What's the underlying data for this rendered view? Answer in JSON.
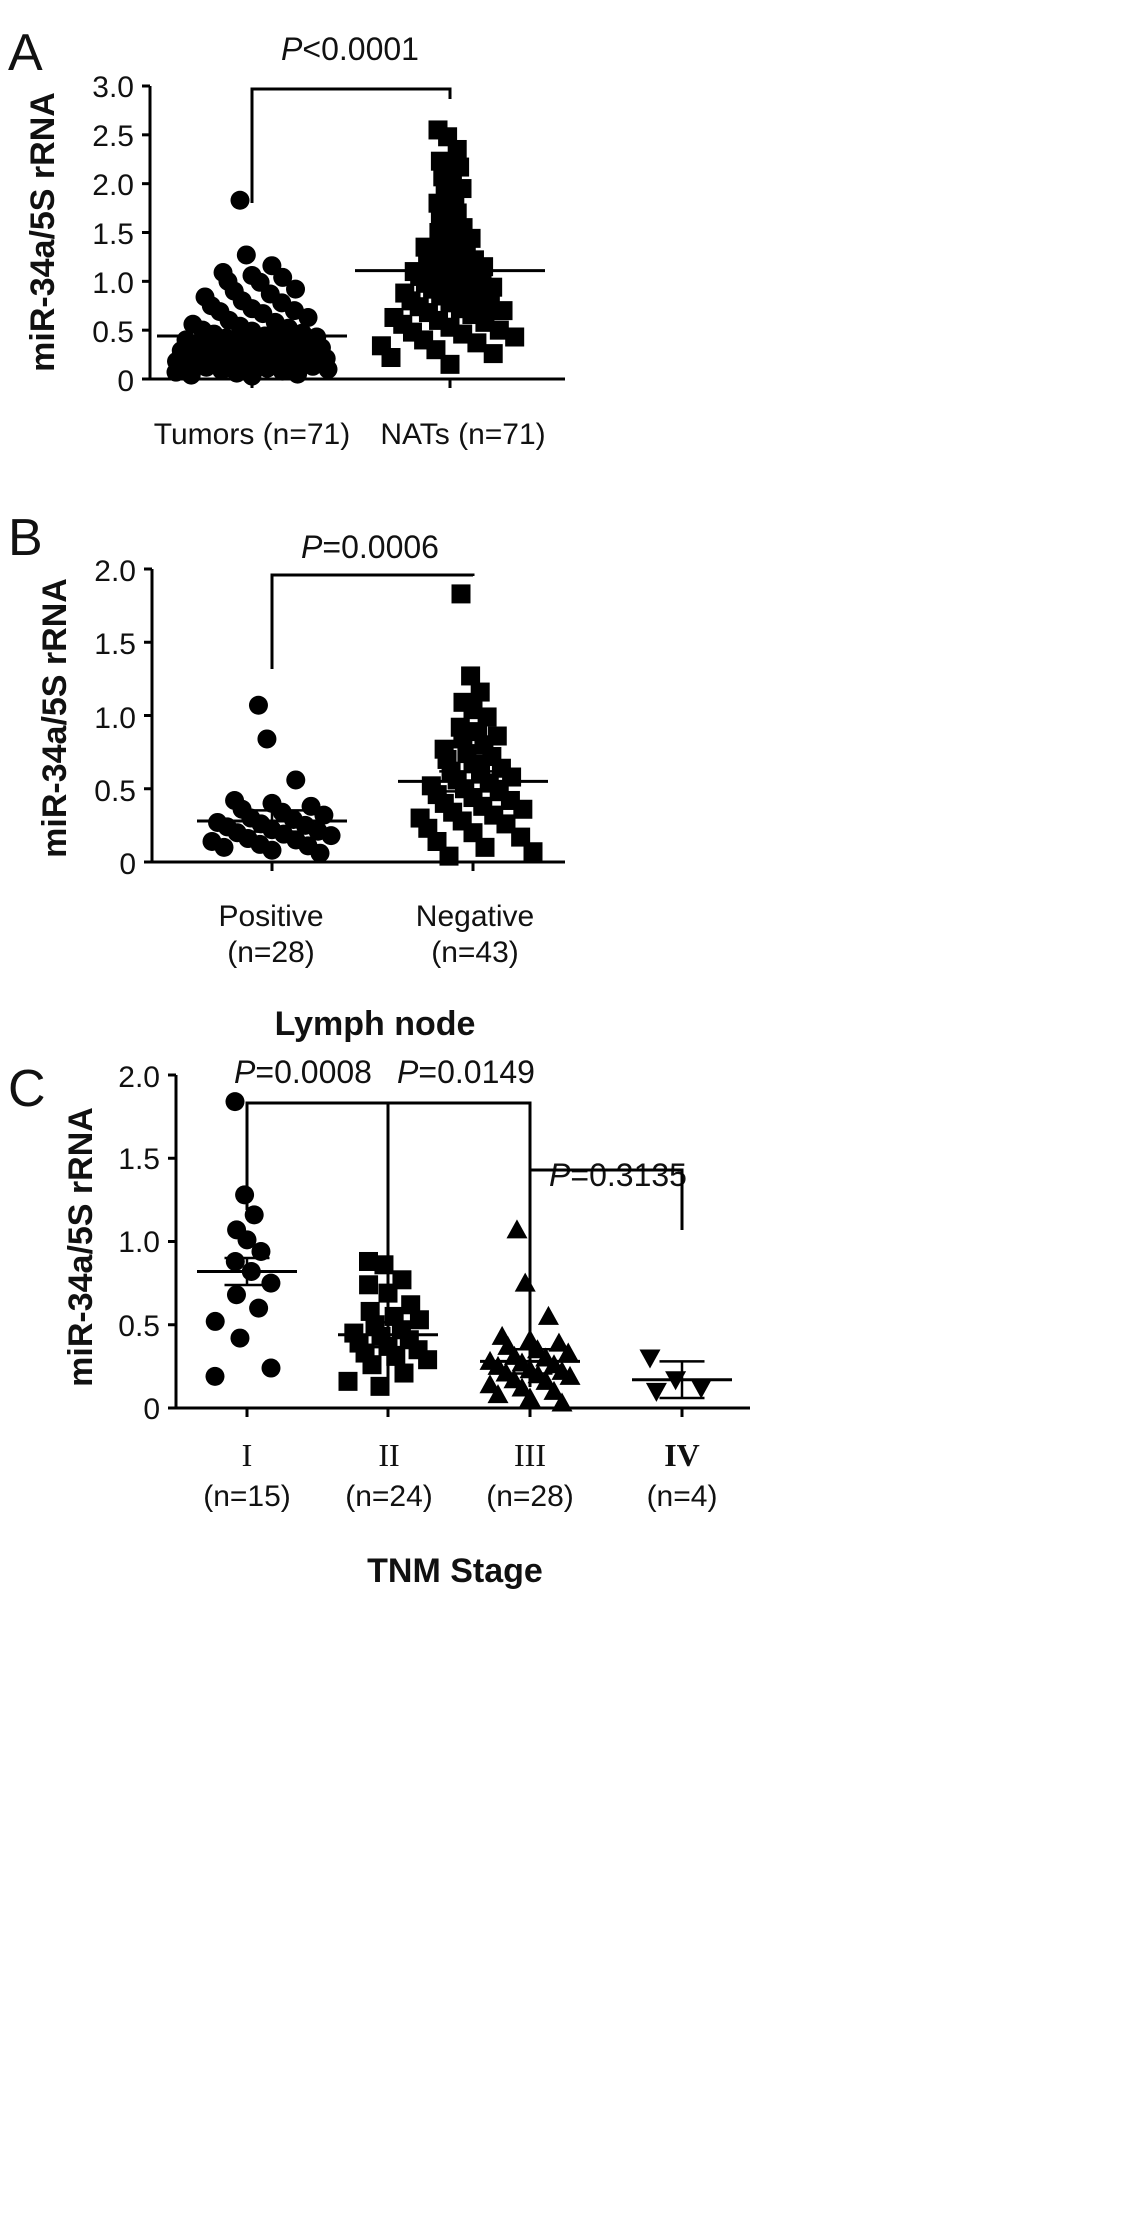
{
  "figure": {
    "panels": [
      {
        "letter": "A",
        "ylabel": "miR-34a/5S rRNA",
        "yticks": [
          "0",
          "0.5",
          "1.0",
          "1.5",
          "2.0",
          "2.5",
          "3.0"
        ],
        "groups": [
          {
            "label": "Tumors (n=71)",
            "lines": [
              "Tumors (n=71)"
            ],
            "marker": "circle"
          },
          {
            "label": "NATs (n=71)",
            "lines": [
              "NATs (n=71)"
            ],
            "marker": "square"
          }
        ],
        "xlabel": "",
        "comparisons": [
          {
            "prefix": "P",
            "text": "<0.0001"
          }
        ]
      },
      {
        "letter": "B",
        "ylabel": "miR-34a/5S rRNA",
        "yticks": [
          "0",
          "0.5",
          "1.0",
          "1.5",
          "2.0"
        ],
        "groups": [
          {
            "label": "Positive (n=28)",
            "lines": [
              "Positive",
              "(n=28)"
            ],
            "marker": "circle"
          },
          {
            "label": "Negative (n=43)",
            "lines": [
              "Negative",
              "(n=43)"
            ],
            "marker": "square"
          }
        ],
        "xlabel": "Lymph node",
        "comparisons": [
          {
            "prefix": "P",
            "text": "=0.0006"
          }
        ]
      },
      {
        "letter": "C",
        "ylabel": "miR-34a/5S rRNA",
        "yticks": [
          "0",
          "0.5",
          "1.0",
          "1.5",
          "2.0"
        ],
        "groups": [
          {
            "label": "I (n=15)",
            "lines": [
              "I",
              "(n=15)"
            ],
            "marker": "circle"
          },
          {
            "label": "II (n=24)",
            "lines": [
              "II",
              "(n=24)"
            ],
            "marker": "square"
          },
          {
            "label": "III (n=28)",
            "lines": [
              "III",
              "(n=28)"
            ],
            "marker": "triangle-up"
          },
          {
            "label": "IV (n=4)",
            "lines": [
              "IV",
              "(n=4)"
            ],
            "marker": "triangle-down"
          }
        ],
        "xlabel": "TNM Stage",
        "comparisons": [
          {
            "prefix": "P",
            "text": "=0.0008"
          },
          {
            "prefix": "P",
            "text": "=0.0149"
          },
          {
            "prefix": "P",
            "text": "=0.3135"
          }
        ]
      }
    ]
  },
  "chart_data": [
    {
      "panel": "A",
      "type": "scatter",
      "title": "",
      "xlabel": "",
      "ylabel": "miR-34a/5S rRNA",
      "ylim": [
        0,
        3.0
      ],
      "yticks": [
        0,
        0.5,
        1.0,
        1.5,
        2.0,
        2.5,
        3.0
      ],
      "categories": [
        "Tumors (n=71)",
        "NATs (n=71)"
      ],
      "series": [
        {
          "values": [
            1.83,
            1.27,
            1.16,
            1.09,
            1.06,
            1.04,
            1.0,
            0.99,
            0.92,
            0.9,
            0.87,
            0.84,
            0.8,
            0.78,
            0.75,
            0.72,
            0.7,
            0.69,
            0.67,
            0.63,
            0.6,
            0.58,
            0.56,
            0.54,
            0.52,
            0.5,
            0.49,
            0.47,
            0.46,
            0.44,
            0.43,
            0.42,
            0.41,
            0.4,
            0.39,
            0.38,
            0.37,
            0.36,
            0.35,
            0.34,
            0.33,
            0.32,
            0.31,
            0.3,
            0.29,
            0.28,
            0.27,
            0.26,
            0.25,
            0.24,
            0.23,
            0.22,
            0.21,
            0.2,
            0.19,
            0.18,
            0.17,
            0.16,
            0.15,
            0.14,
            0.13,
            0.12,
            0.11,
            0.1,
            0.09,
            0.08,
            0.07,
            0.06,
            0.05,
            0.04,
            0.03
          ],
          "mean": 0.44
        },
        {
          "values": [
            2.55,
            2.48,
            2.35,
            2.23,
            2.2,
            2.17,
            2.07,
            1.98,
            1.95,
            1.91,
            1.88,
            1.8,
            1.75,
            1.7,
            1.66,
            1.6,
            1.55,
            1.5,
            1.47,
            1.44,
            1.4,
            1.38,
            1.35,
            1.32,
            1.3,
            1.28,
            1.25,
            1.22,
            1.2,
            1.18,
            1.15,
            1.13,
            1.11,
            1.1,
            1.08,
            1.06,
            1.05,
            1.03,
            1.0,
            0.98,
            0.96,
            0.94,
            0.92,
            0.9,
            0.88,
            0.85,
            0.83,
            0.8,
            0.78,
            0.76,
            0.74,
            0.72,
            0.7,
            0.68,
            0.66,
            0.63,
            0.6,
            0.58,
            0.56,
            0.53,
            0.5,
            0.48,
            0.46,
            0.43,
            0.4,
            0.37,
            0.34,
            0.3,
            0.26,
            0.22,
            0.15
          ],
          "mean": 1.11
        }
      ],
      "comparisons": [
        {
          "from": 0,
          "to": 1,
          "label": "P<0.0001"
        }
      ]
    },
    {
      "panel": "B",
      "type": "scatter",
      "title": "",
      "xlabel": "Lymph node",
      "ylabel": "miR-34a/5S rRNA",
      "ylim": [
        0,
        2.0
      ],
      "yticks": [
        0,
        0.5,
        1.0,
        1.5,
        2.0
      ],
      "categories": [
        "Positive (n=28)",
        "Negative (n=43)"
      ],
      "series": [
        {
          "values": [
            1.07,
            0.84,
            0.56,
            0.42,
            0.4,
            0.38,
            0.36,
            0.34,
            0.32,
            0.3,
            0.29,
            0.27,
            0.26,
            0.25,
            0.24,
            0.22,
            0.21,
            0.2,
            0.19,
            0.18,
            0.16,
            0.15,
            0.14,
            0.12,
            0.11,
            0.1,
            0.08,
            0.06
          ],
          "mean": 0.28
        },
        {
          "values": [
            1.83,
            1.27,
            1.16,
            1.09,
            1.04,
            0.99,
            0.92,
            0.89,
            0.86,
            0.84,
            0.8,
            0.77,
            0.74,
            0.72,
            0.7,
            0.67,
            0.64,
            0.62,
            0.6,
            0.58,
            0.56,
            0.54,
            0.52,
            0.5,
            0.48,
            0.46,
            0.44,
            0.42,
            0.4,
            0.38,
            0.36,
            0.34,
            0.32,
            0.3,
            0.28,
            0.26,
            0.23,
            0.2,
            0.17,
            0.14,
            0.1,
            0.07,
            0.04
          ],
          "mean": 0.55
        }
      ],
      "comparisons": [
        {
          "from": 0,
          "to": 1,
          "label": "P=0.0006"
        }
      ]
    },
    {
      "panel": "C",
      "type": "scatter",
      "title": "",
      "xlabel": "TNM Stage",
      "ylabel": "miR-34a/5S rRNA",
      "ylim": [
        0,
        2.0
      ],
      "yticks": [
        0,
        0.5,
        1.0,
        1.5,
        2.0
      ],
      "categories": [
        "I (n=15)",
        "II (n=24)",
        "III (n=28)",
        "IV (n=4)"
      ],
      "series": [
        {
          "values": [
            1.84,
            1.28,
            1.16,
            1.07,
            1.01,
            0.94,
            0.88,
            0.82,
            0.75,
            0.68,
            0.6,
            0.52,
            0.42,
            0.24,
            0.19
          ],
          "mean": 0.82
        },
        {
          "values": [
            0.88,
            0.86,
            0.77,
            0.74,
            0.69,
            0.62,
            0.58,
            0.55,
            0.53,
            0.5,
            0.47,
            0.45,
            0.43,
            0.41,
            0.39,
            0.37,
            0.35,
            0.33,
            0.31,
            0.29,
            0.26,
            0.21,
            0.16,
            0.13
          ],
          "mean": 0.44
        },
        {
          "values": [
            1.07,
            0.75,
            0.55,
            0.43,
            0.41,
            0.39,
            0.37,
            0.35,
            0.33,
            0.31,
            0.3,
            0.28,
            0.27,
            0.26,
            0.25,
            0.23,
            0.22,
            0.21,
            0.2,
            0.19,
            0.17,
            0.16,
            0.14,
            0.12,
            0.1,
            0.08,
            0.06,
            0.03
          ],
          "mean": 0.28
        },
        {
          "values": [
            0.3,
            0.17,
            0.12,
            0.1
          ],
          "mean": 0.17
        }
      ],
      "comparisons": [
        {
          "from": 0,
          "to": 1,
          "label": "P=0.0008"
        },
        {
          "from": 1,
          "to": 2,
          "label": "P=0.0149"
        },
        {
          "from": 2,
          "to": 3,
          "label": "P=0.3135"
        }
      ]
    }
  ]
}
